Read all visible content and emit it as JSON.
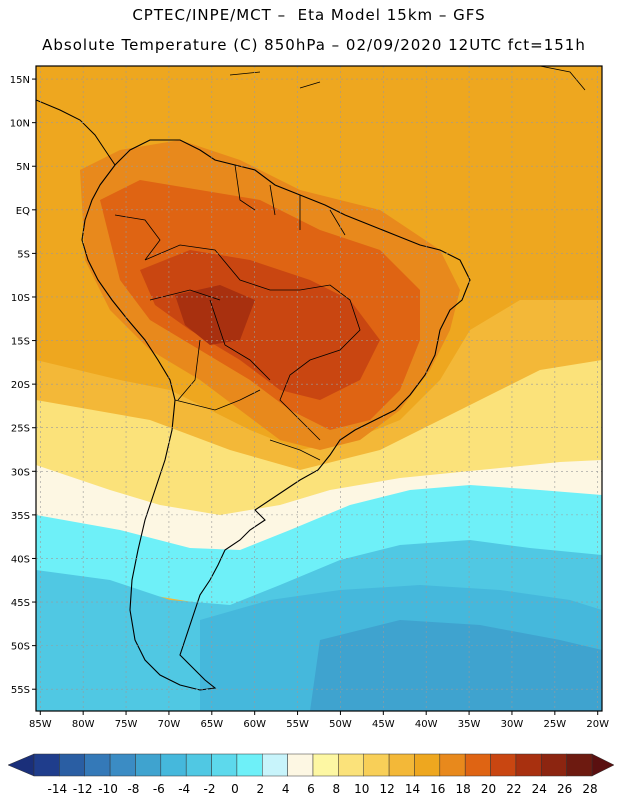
{
  "header": {
    "line1": "CPTEC/INPE/MCT –  Eta Model 15km – GFS",
    "line2": "Absolute Temperature (C) 850hPa – 02/09/2020 12UTC fct=151h"
  },
  "map": {
    "lat_labels": [
      "15N",
      "10N",
      "5N",
      "EQ",
      "5S",
      "10S",
      "15S",
      "20S",
      "25S",
      "30S",
      "35S",
      "40S",
      "45S",
      "50S",
      "55S"
    ],
    "lon_labels": [
      "85W",
      "80W",
      "75W",
      "70W",
      "65W",
      "60W",
      "55W",
      "50W",
      "45W",
      "40W",
      "35W",
      "30W",
      "25W",
      "20W"
    ],
    "lat_values": [
      15,
      10,
      5,
      0,
      -5,
      -10,
      -15,
      -20,
      -25,
      -30,
      -35,
      -40,
      -45,
      -50,
      -55
    ],
    "lon_values": [
      -85,
      -80,
      -75,
      -70,
      -65,
      -60,
      -55,
      -50,
      -45,
      -40,
      -35,
      -30,
      -25,
      -20
    ],
    "extent": {
      "lon_min": -85.5,
      "lon_max": -19.5,
      "lat_min": -57.5,
      "lat_max": 16.5
    }
  },
  "colorbar": {
    "labels": [
      "-14",
      "-12",
      "-10",
      "-8",
      "-6",
      "-4",
      "-2",
      "0",
      "2",
      "4",
      "6",
      "8",
      "10",
      "12",
      "14",
      "16",
      "18",
      "20",
      "22",
      "24",
      "26",
      "28"
    ],
    "colors": [
      "#1f3d8c",
      "#2a5ea3",
      "#3479b8",
      "#3b8cc4",
      "#3fa3cf",
      "#45b8dc",
      "#50c8e3",
      "#5dd9ec",
      "#6ef0f8",
      "#c8f4fb",
      "#fdf7e3",
      "#fdf7a3",
      "#fbe27a",
      "#f8cf58",
      "#f3b838",
      "#eea71f",
      "#e8891c",
      "#df6413",
      "#c94611",
      "#a8300f",
      "#8c2510",
      "#6d1a10"
    ],
    "low_color": "#1a2f7a",
    "high_color": "#5a1010"
  }
}
